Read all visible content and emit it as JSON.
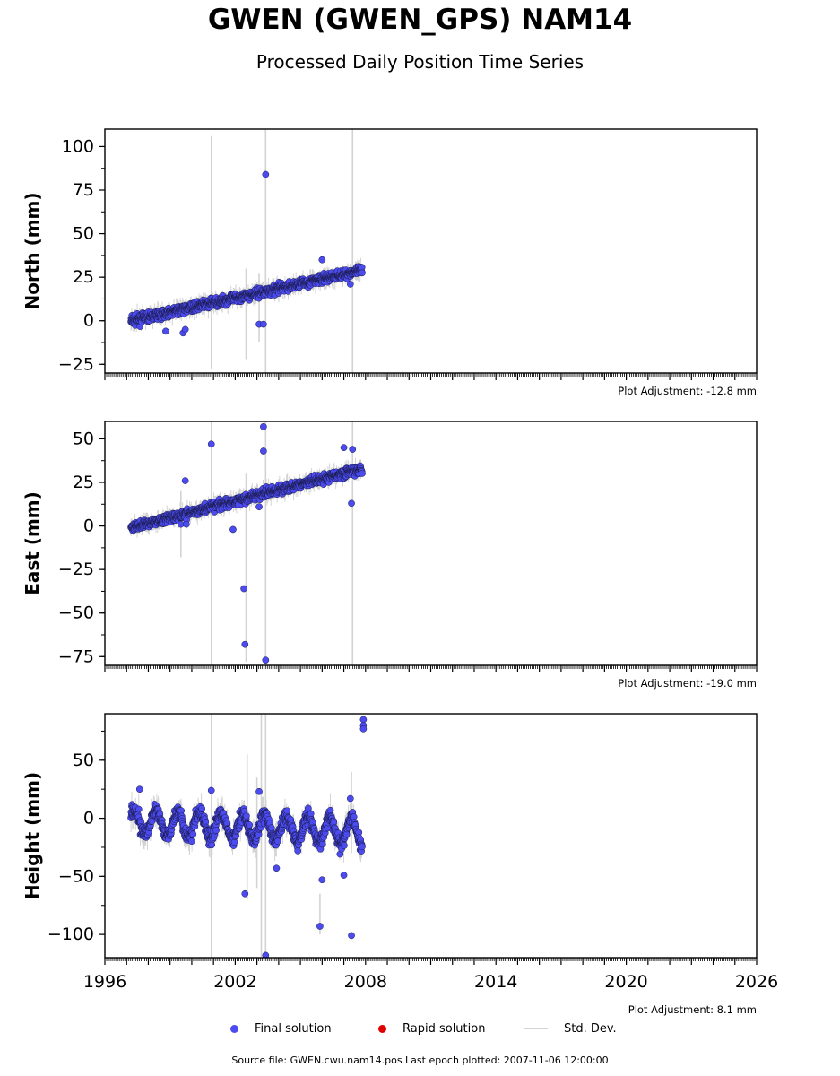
{
  "title": "GWEN (GWEN_GPS) NAM14",
  "subtitle": "Processed Daily Position Time Series",
  "colors": {
    "final": "#4b4bf0",
    "rapid": "#e00000",
    "stddev": "#d3d3d3"
  },
  "legend": {
    "final": "Final solution",
    "rapid": "Rapid solution",
    "stddev": "Std. Dev."
  },
  "source": "Source file: GWEN.cwu.nam14.pos  Last epoch plotted: 2007-11-06 12:00:00",
  "chart_data": [
    {
      "type": "scatter",
      "ylabel": "North (mm)",
      "adjustment": "Plot Adjustment: -12.8 mm",
      "xlim": [
        1996,
        2026
      ],
      "ylim": [
        -30,
        110
      ],
      "yticks": [
        -25,
        0,
        25,
        50,
        75,
        100
      ],
      "trend": {
        "x": [
          1997.2,
          2007.85
        ],
        "y": [
          0,
          29
        ]
      },
      "noise": 2.5,
      "outliers": [
        {
          "x": 2003.4,
          "y": 84
        },
        {
          "x": 2006.0,
          "y": 35
        },
        {
          "x": 2003.1,
          "y": -2
        },
        {
          "x": 2003.3,
          "y": -2
        },
        {
          "x": 1999.6,
          "y": -7
        },
        {
          "x": 1999.7,
          "y": -5
        },
        {
          "x": 1998.8,
          "y": -6
        },
        {
          "x": 2007.3,
          "y": 21
        }
      ],
      "spikes": [
        {
          "x": 2000.9,
          "y1": -28,
          "y2": 106
        },
        {
          "x": 2003.4,
          "y1": -30,
          "y2": 110
        },
        {
          "x": 2007.4,
          "y1": -30,
          "y2": 110
        },
        {
          "x": 2002.5,
          "y1": -22,
          "y2": 30
        },
        {
          "x": 2003.1,
          "y1": -12,
          "y2": 27
        }
      ]
    },
    {
      "type": "scatter",
      "ylabel": "East (mm)",
      "adjustment": "Plot Adjustment: -19.0 mm",
      "xlim": [
        1996,
        2026
      ],
      "ylim": [
        -80,
        60
      ],
      "yticks": [
        -75,
        -50,
        -25,
        0,
        25,
        50
      ],
      "trend": {
        "x": [
          1997.2,
          2007.85
        ],
        "y": [
          -1,
          33
        ]
      },
      "noise": 2.5,
      "outliers": [
        {
          "x": 2000.9,
          "y": 47
        },
        {
          "x": 2003.3,
          "y": 57
        },
        {
          "x": 2003.3,
          "y": 43
        },
        {
          "x": 2007.0,
          "y": 45
        },
        {
          "x": 2007.4,
          "y": 44
        },
        {
          "x": 1999.7,
          "y": 26
        },
        {
          "x": 2002.4,
          "y": -36
        },
        {
          "x": 2002.45,
          "y": -68
        },
        {
          "x": 2003.4,
          "y": -77
        },
        {
          "x": 2001.9,
          "y": -2
        },
        {
          "x": 1999.5,
          "y": 1
        },
        {
          "x": 1999.75,
          "y": 1
        },
        {
          "x": 2007.35,
          "y": 13
        },
        {
          "x": 2003.1,
          "y": 11
        }
      ],
      "spikes": [
        {
          "x": 2000.9,
          "y1": -80,
          "y2": 60
        },
        {
          "x": 2003.4,
          "y1": -80,
          "y2": 60
        },
        {
          "x": 2007.4,
          "y1": -80,
          "y2": 60
        },
        {
          "x": 2002.5,
          "y1": -78,
          "y2": 30
        },
        {
          "x": 1999.5,
          "y1": -18,
          "y2": 20
        }
      ]
    },
    {
      "type": "scatter",
      "ylabel": "Height (mm)",
      "adjustment": "Plot Adjustment: 8.1 mm",
      "xlim": [
        1996,
        2026
      ],
      "ylim": [
        -120,
        90
      ],
      "yticks": [
        -100,
        -50,
        0,
        50
      ],
      "xticks": [
        1996,
        2002,
        2008,
        2014,
        2020,
        2026
      ],
      "trend": {
        "x": [
          1997.2,
          2007.85
        ],
        "y": [
          -3,
          -12
        ]
      },
      "seasonal_amplitude": 11,
      "noise": 6,
      "outliers": [
        {
          "x": 2007.9,
          "y": 85
        },
        {
          "x": 2007.9,
          "y": 80
        },
        {
          "x": 2007.9,
          "y": 77
        },
        {
          "x": 1997.6,
          "y": 25
        },
        {
          "x": 2000.9,
          "y": 24
        },
        {
          "x": 2003.1,
          "y": 23
        },
        {
          "x": 2007.3,
          "y": 17
        },
        {
          "x": 2002.45,
          "y": -65
        },
        {
          "x": 2005.9,
          "y": -93
        },
        {
          "x": 2007.35,
          "y": -101
        },
        {
          "x": 2003.4,
          "y": -118
        },
        {
          "x": 2006.0,
          "y": -53
        },
        {
          "x": 2003.9,
          "y": -43
        },
        {
          "x": 2007.0,
          "y": -49
        }
      ],
      "spikes": [
        {
          "x": 2000.9,
          "y1": -120,
          "y2": 90
        },
        {
          "x": 2003.2,
          "y1": -120,
          "y2": 90
        },
        {
          "x": 2003.4,
          "y1": -120,
          "y2": 90
        },
        {
          "x": 2002.55,
          "y1": -70,
          "y2": 55
        },
        {
          "x": 2003.0,
          "y1": -60,
          "y2": 35
        },
        {
          "x": 2007.35,
          "y1": -30,
          "y2": 40
        },
        {
          "x": 2005.9,
          "y1": -100,
          "y2": -65
        }
      ]
    }
  ]
}
